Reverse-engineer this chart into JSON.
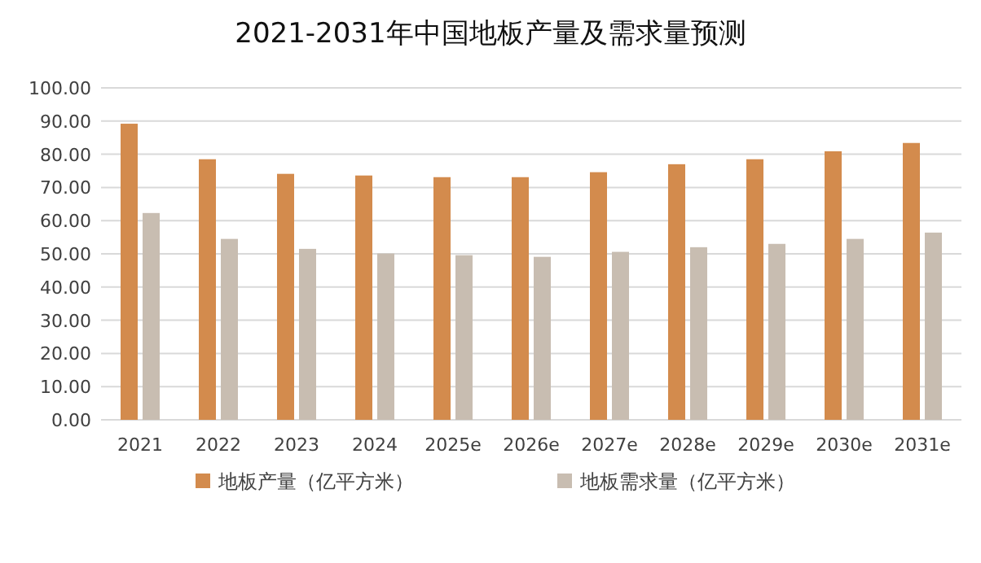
{
  "chart_data": {
    "type": "bar",
    "title": "2021-2031年中国地板产量及需求量预测",
    "categories": [
      "2021",
      "2022",
      "2023",
      "2024",
      "2025e",
      "2026e",
      "2027e",
      "2028e",
      "2029e",
      "2030e",
      "2031e"
    ],
    "series": [
      {
        "name": "地板产量（亿平方米）",
        "color": "#d38b4d",
        "values": [
          89.2,
          78.5,
          74.1,
          73.6,
          73.1,
          73.1,
          74.6,
          77.0,
          78.5,
          80.9,
          83.4
        ]
      },
      {
        "name": "地板需求量（亿平方米）",
        "color": "#c8bdb1",
        "values": [
          62.3,
          54.5,
          51.5,
          50.1,
          49.6,
          49.1,
          50.6,
          52.0,
          53.0,
          54.5,
          56.4
        ]
      }
    ],
    "ylim": [
      0,
      100
    ],
    "yticks": [
      {
        "value": 0,
        "label": "0.00"
      },
      {
        "value": 10,
        "label": "10.00"
      },
      {
        "value": 20,
        "label": "20.00"
      },
      {
        "value": 30,
        "label": "30.00"
      },
      {
        "value": 40,
        "label": "40.00"
      },
      {
        "value": 50,
        "label": "50.00"
      },
      {
        "value": 60,
        "label": "60.00"
      },
      {
        "value": 70,
        "label": "70.00"
      },
      {
        "value": 80,
        "label": "80.00"
      },
      {
        "value": 90,
        "label": "90.00"
      },
      {
        "value": 100,
        "label": "100.00"
      }
    ],
    "grid": "y",
    "legend": "bottom"
  }
}
